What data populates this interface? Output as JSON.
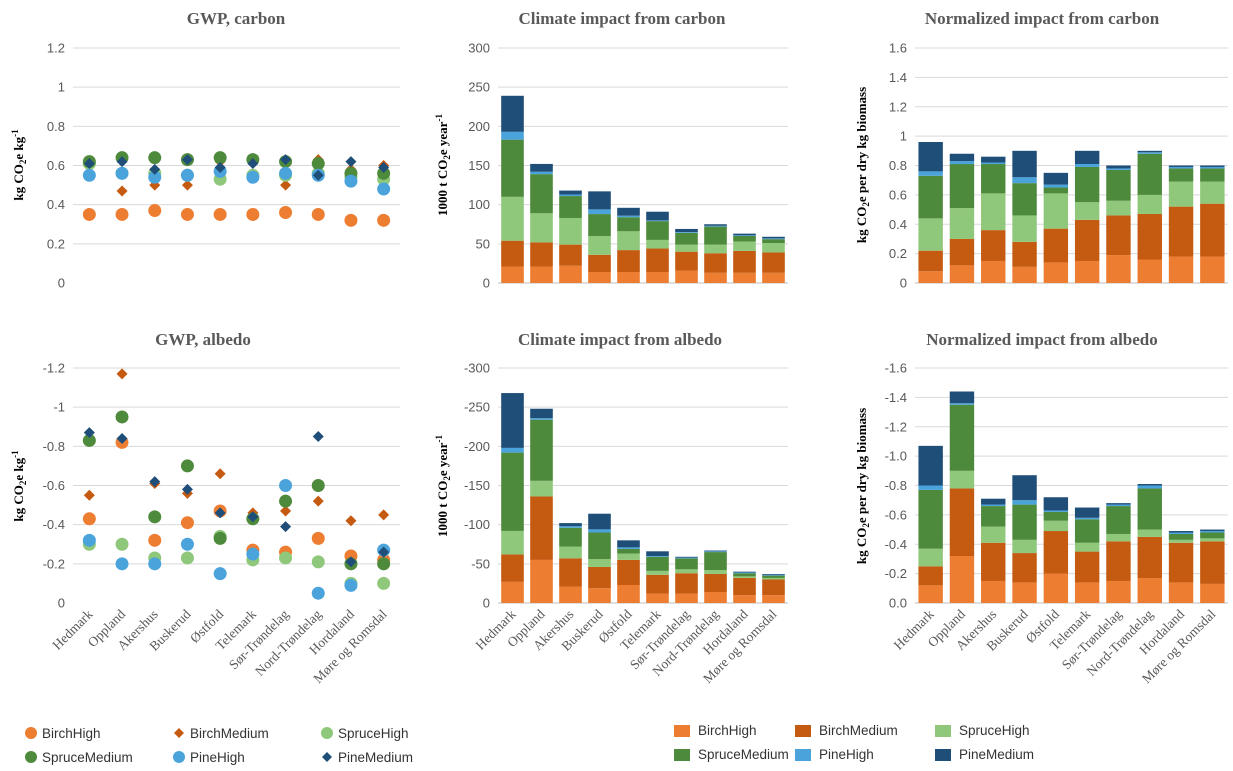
{
  "categories": [
    "Hedmark",
    "Oppland",
    "Akershus",
    "Buskerud",
    "Østfold",
    "Telemark",
    "Sør-Trøndelag",
    "Nord-Trøndelag",
    "Hordaland",
    "Møre og Romsdal"
  ],
  "series_colors": {
    "BirchHigh": "#ED7D31",
    "BirchMedium": "#C55A11",
    "SpruceHigh": "#8FC87A",
    "SpruceMedium": "#4E8A3C",
    "PineHigh": "#4BA3DC",
    "PineMedium": "#1F4E79"
  },
  "legend_scatter": [
    {
      "name": "BirchHigh",
      "marker": "circle"
    },
    {
      "name": "BirchMedium",
      "marker": "diamond"
    },
    {
      "name": "SpruceHigh",
      "marker": "circle"
    },
    {
      "name": "SpruceMedium",
      "marker": "circle"
    },
    {
      "name": "PineHigh",
      "marker": "circle"
    },
    {
      "name": "PineMedium",
      "marker": "diamond"
    }
  ],
  "legend_bar": [
    "BirchHigh",
    "BirchMedium",
    "SpruceHigh",
    "SpruceMedium",
    "PineHigh",
    "PineMedium"
  ],
  "chart_data": [
    {
      "type": "scatter",
      "title": "GWP, carbon",
      "ylabel": "kg CO2e kg-1",
      "ylim": [
        0,
        1.2
      ],
      "yticks": [
        "0",
        "0.2",
        "0.4",
        "0.6",
        "0.8",
        "1",
        "1.2"
      ],
      "reversed": false,
      "show_x_labels": false,
      "series": [
        {
          "name": "BirchHigh",
          "values": [
            0.35,
            0.35,
            0.37,
            0.35,
            0.35,
            0.35,
            0.36,
            0.35,
            0.32,
            0.32
          ]
        },
        {
          "name": "BirchMedium",
          "values": [
            0.62,
            0.47,
            0.5,
            0.5,
            0.62,
            0.62,
            0.5,
            0.63,
            0.58,
            0.6
          ]
        },
        {
          "name": "SpruceHigh",
          "values": [
            0.61,
            0.56,
            0.56,
            0.55,
            0.53,
            0.55,
            0.55,
            0.56,
            0.54,
            0.53
          ]
        },
        {
          "name": "SpruceMedium",
          "values": [
            0.62,
            0.64,
            0.64,
            0.63,
            0.64,
            0.63,
            0.62,
            0.61,
            0.56,
            0.56
          ]
        },
        {
          "name": "PineHigh",
          "values": [
            0.55,
            0.56,
            0.54,
            0.55,
            0.57,
            0.54,
            0.56,
            0.55,
            0.52,
            0.48
          ]
        },
        {
          "name": "PineMedium",
          "values": [
            0.61,
            0.62,
            0.58,
            0.63,
            0.59,
            0.61,
            0.63,
            0.55,
            0.62,
            0.59
          ]
        }
      ]
    },
    {
      "type": "bar",
      "stacked": true,
      "title": "Climate impact from carbon",
      "ylabel": "1000 t CO2e year-1",
      "ylim": [
        0,
        300
      ],
      "yticks": [
        "0",
        "50",
        "100",
        "150",
        "200",
        "250",
        "300"
      ],
      "reversed": false,
      "show_x_labels": false,
      "series": [
        {
          "name": "BirchHigh",
          "values": [
            21,
            21,
            22,
            14,
            14,
            14,
            16,
            13,
            13,
            13
          ]
        },
        {
          "name": "BirchMedium",
          "values": [
            33,
            31,
            27,
            22,
            28,
            30,
            24,
            25,
            28,
            26
          ]
        },
        {
          "name": "SpruceHigh",
          "values": [
            56,
            37,
            34,
            24,
            24,
            11,
            9,
            11,
            12,
            12
          ]
        },
        {
          "name": "SpruceMedium",
          "values": [
            73,
            50,
            28,
            28,
            18,
            24,
            15,
            23,
            7,
            5
          ]
        },
        {
          "name": "PineHigh",
          "values": [
            10,
            3,
            2,
            6,
            2,
            1,
            1,
            1,
            1,
            1
          ]
        },
        {
          "name": "PineMedium",
          "values": [
            46,
            10,
            5,
            23,
            10,
            11,
            4,
            2,
            2,
            2
          ]
        }
      ]
    },
    {
      "type": "bar",
      "stacked": true,
      "title": "Normalized impact from carbon",
      "ylabel": "kg CO2e per dry kg biomass",
      "ylim": [
        0,
        1.6
      ],
      "yticks": [
        "0",
        "0.2",
        "0.4",
        "0.6",
        "0.8",
        "1",
        "1.2",
        "1.4",
        "1.6"
      ],
      "reversed": false,
      "show_x_labels": false,
      "series": [
        {
          "name": "BirchHigh",
          "values": [
            0.08,
            0.12,
            0.15,
            0.11,
            0.14,
            0.15,
            0.19,
            0.16,
            0.18,
            0.18
          ]
        },
        {
          "name": "BirchMedium",
          "values": [
            0.14,
            0.18,
            0.21,
            0.17,
            0.23,
            0.28,
            0.27,
            0.31,
            0.34,
            0.36
          ]
        },
        {
          "name": "SpruceHigh",
          "values": [
            0.22,
            0.21,
            0.25,
            0.18,
            0.24,
            0.12,
            0.1,
            0.13,
            0.17,
            0.15
          ]
        },
        {
          "name": "SpruceMedium",
          "values": [
            0.29,
            0.3,
            0.2,
            0.22,
            0.04,
            0.24,
            0.21,
            0.28,
            0.09,
            0.09
          ]
        },
        {
          "name": "PineHigh",
          "values": [
            0.03,
            0.02,
            0.01,
            0.04,
            0.02,
            0.02,
            0.01,
            0.01,
            0.01,
            0.01
          ]
        },
        {
          "name": "PineMedium",
          "values": [
            0.2,
            0.05,
            0.04,
            0.18,
            0.08,
            0.09,
            0.02,
            0.01,
            0.01,
            0.01
          ]
        }
      ]
    },
    {
      "type": "scatter",
      "title": "GWP, albedo",
      "ylabel": "kg CO2e kg-1",
      "ylim": [
        0,
        -1.2
      ],
      "yticks": [
        "0",
        "-0.2",
        "-0.4",
        "-0.6",
        "-0.8",
        "-1",
        "-1.2"
      ],
      "reversed": true,
      "show_x_labels": true,
      "series": [
        {
          "name": "BirchHigh",
          "values": [
            -0.43,
            -0.82,
            -0.32,
            -0.41,
            -0.47,
            -0.27,
            -0.26,
            -0.33,
            -0.24,
            -0.22
          ]
        },
        {
          "name": "BirchMedium",
          "values": [
            -0.55,
            -1.17,
            -0.61,
            -0.56,
            -0.66,
            -0.46,
            -0.47,
            -0.52,
            -0.42,
            -0.45
          ]
        },
        {
          "name": "SpruceHigh",
          "values": [
            -0.3,
            -0.3,
            -0.23,
            -0.23,
            -0.34,
            -0.22,
            -0.23,
            -0.21,
            -0.1,
            -0.1
          ]
        },
        {
          "name": "SpruceMedium",
          "values": [
            -0.83,
            -0.95,
            -0.44,
            -0.7,
            -0.33,
            -0.43,
            -0.52,
            -0.6,
            -0.2,
            -0.2
          ]
        },
        {
          "name": "PineHigh",
          "values": [
            -0.32,
            -0.2,
            -0.2,
            -0.3,
            -0.15,
            -0.25,
            -0.6,
            -0.05,
            -0.09,
            -0.27
          ]
        },
        {
          "name": "PineMedium",
          "values": [
            -0.87,
            -0.84,
            -0.62,
            -0.58,
            -0.46,
            -0.44,
            -0.39,
            -0.85,
            -0.21,
            -0.26
          ]
        }
      ]
    },
    {
      "type": "bar",
      "stacked": true,
      "title": "Climate impact from albedo",
      "ylabel": "1000 t CO2e year-1",
      "ylim": [
        0,
        -300
      ],
      "yticks": [
        "0",
        "-50",
        "-100",
        "-150",
        "-200",
        "-250",
        "-300"
      ],
      "reversed": true,
      "show_x_labels": true,
      "series": [
        {
          "name": "BirchHigh",
          "values": [
            -27,
            -55,
            -21,
            -19,
            -23,
            -12,
            -12,
            -14,
            -10,
            -10
          ]
        },
        {
          "name": "BirchMedium",
          "values": [
            -35,
            -81,
            -36,
            -27,
            -32,
            -24,
            -26,
            -23,
            -22,
            -20
          ]
        },
        {
          "name": "SpruceHigh",
          "values": [
            -30,
            -20,
            -15,
            -10,
            -8,
            -5,
            -5,
            -5,
            -2,
            -2
          ]
        },
        {
          "name": "SpruceMedium",
          "values": [
            -100,
            -78,
            -24,
            -34,
            -6,
            -18,
            -14,
            -23,
            -4,
            -3
          ]
        },
        {
          "name": "PineHigh",
          "values": [
            -6,
            -2,
            -2,
            -4,
            -2,
            -1,
            -1,
            -1,
            -1,
            -1
          ]
        },
        {
          "name": "PineMedium",
          "values": [
            -70,
            -12,
            -4,
            -20,
            -9,
            -6,
            -1,
            -1,
            -1,
            -1
          ]
        }
      ]
    },
    {
      "type": "bar",
      "stacked": true,
      "title": "Normalized impact from albedo",
      "ylabel": "kg CO2e per dry kg biomass",
      "ylim": [
        0,
        -1.6
      ],
      "yticks": [
        "0.0",
        "-0.2",
        "-0.4",
        "-0.6",
        "-0.8",
        "-1.0",
        "-1.2",
        "-1.4",
        "-1.6"
      ],
      "reversed": true,
      "show_x_labels": true,
      "series": [
        {
          "name": "BirchHigh",
          "values": [
            -0.12,
            -0.32,
            -0.15,
            -0.14,
            -0.2,
            -0.14,
            -0.15,
            -0.17,
            -0.14,
            -0.13
          ]
        },
        {
          "name": "BirchMedium",
          "values": [
            -0.13,
            -0.46,
            -0.26,
            -0.2,
            -0.29,
            -0.21,
            -0.27,
            -0.28,
            -0.27,
            -0.29
          ]
        },
        {
          "name": "SpruceHigh",
          "values": [
            -0.12,
            -0.12,
            -0.11,
            -0.09,
            -0.07,
            -0.06,
            -0.05,
            -0.05,
            -0.02,
            -0.02
          ]
        },
        {
          "name": "SpruceMedium",
          "values": [
            -0.4,
            -0.45,
            -0.14,
            -0.24,
            -0.06,
            -0.16,
            -0.19,
            -0.28,
            -0.04,
            -0.04
          ]
        },
        {
          "name": "PineHigh",
          "values": [
            -0.03,
            -0.01,
            -0.01,
            -0.03,
            -0.01,
            -0.01,
            -0.01,
            -0.02,
            -0.01,
            -0.01
          ]
        },
        {
          "name": "PineMedium",
          "values": [
            -0.27,
            -0.08,
            -0.04,
            -0.17,
            -0.09,
            -0.07,
            -0.01,
            -0.01,
            -0.01,
            -0.01
          ]
        }
      ]
    }
  ]
}
